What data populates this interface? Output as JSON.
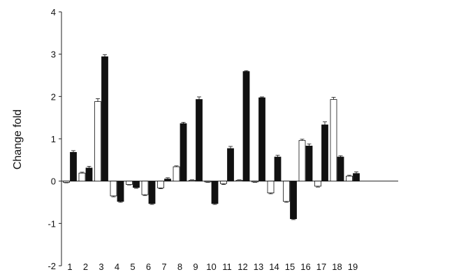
{
  "chart_data": {
    "type": "bar",
    "title": "",
    "xlabel": "",
    "ylabel": "Change fold",
    "ylim": [
      -2,
      4
    ],
    "yticks": [
      -2,
      -1,
      0,
      1,
      2,
      3,
      4
    ],
    "grid": false,
    "legend": "none",
    "categories": [
      "1",
      "2",
      "3",
      "4",
      "5",
      "6",
      "7",
      "8",
      "9",
      "10",
      "11",
      "12",
      "13",
      "14",
      "15",
      "16",
      "17",
      "18",
      "19"
    ],
    "series": [
      {
        "color": "#ffffff",
        "values": [
          -0.03,
          0.19,
          1.88,
          -0.35,
          -0.08,
          -0.32,
          -0.16,
          0.34,
          0.02,
          -0.02,
          -0.06,
          0.02,
          -0.02,
          -0.28,
          -0.48,
          0.96,
          -0.12,
          1.93,
          0.12
        ],
        "errors": [
          0.01,
          0.02,
          0.07,
          0.02,
          0.01,
          0.02,
          0.02,
          0.02,
          0.01,
          0.01,
          0.02,
          0.01,
          0.01,
          0.02,
          0.02,
          0.03,
          0.02,
          0.05,
          0.02
        ]
      },
      {
        "color": "#111111",
        "values": [
          0.68,
          0.31,
          2.94,
          -0.48,
          -0.15,
          -0.53,
          0.05,
          1.36,
          1.93,
          -0.53,
          0.77,
          2.59,
          1.97,
          0.57,
          -0.89,
          0.83,
          1.33,
          0.57,
          0.18
        ],
        "errors": [
          0.04,
          0.04,
          0.05,
          0.02,
          0.02,
          0.02,
          0.03,
          0.03,
          0.06,
          0.02,
          0.05,
          0.02,
          0.02,
          0.04,
          0.02,
          0.05,
          0.07,
          0.03,
          0.04
        ]
      }
    ]
  }
}
